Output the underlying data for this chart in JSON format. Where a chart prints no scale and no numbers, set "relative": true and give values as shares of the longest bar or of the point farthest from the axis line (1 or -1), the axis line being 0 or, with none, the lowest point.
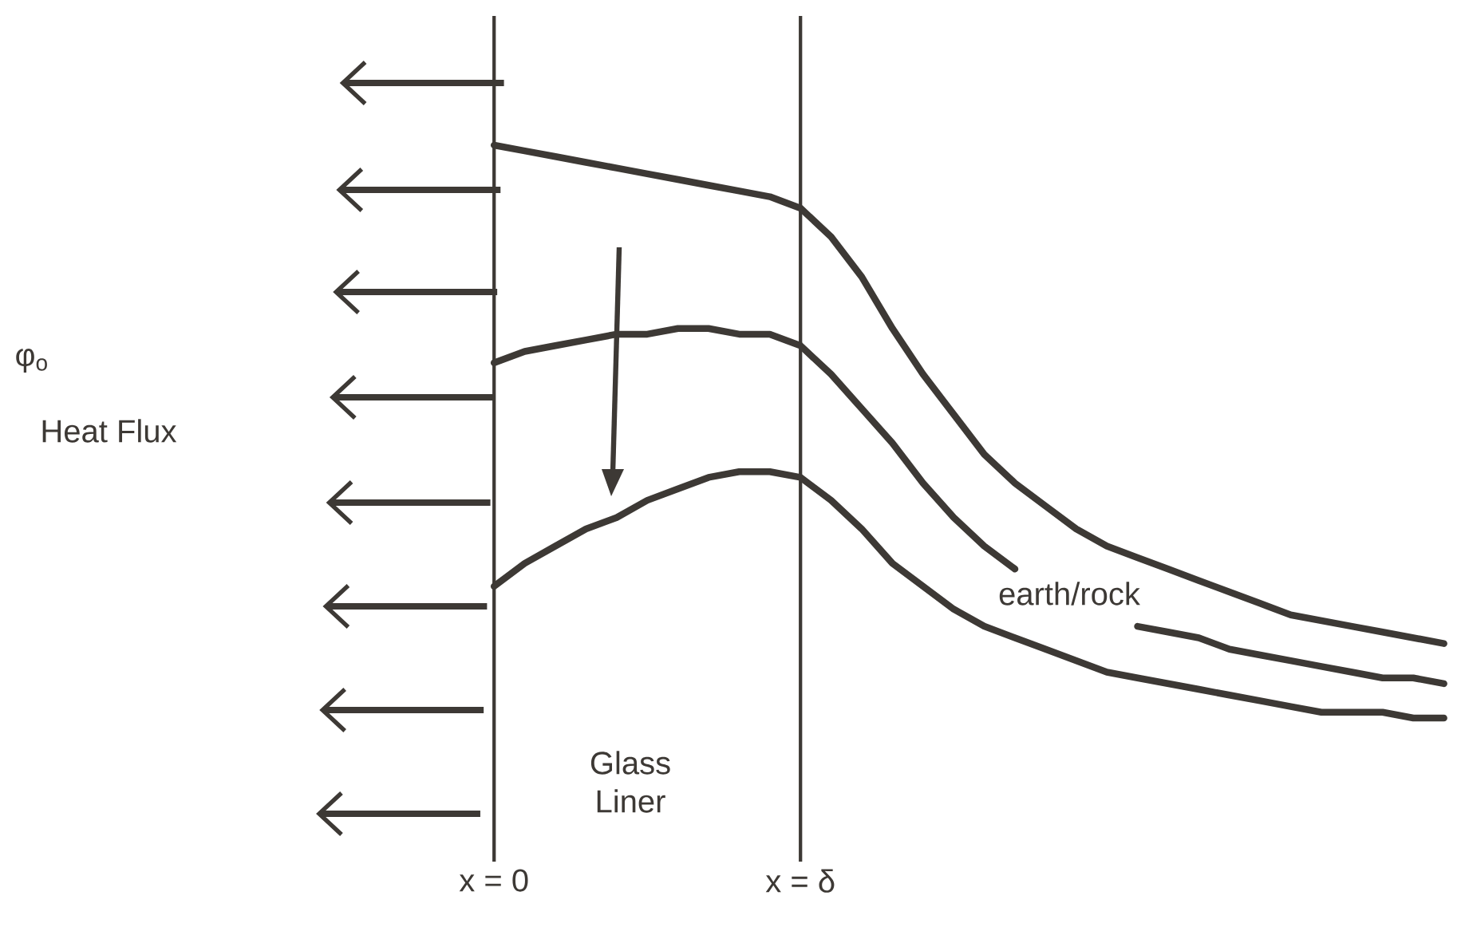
{
  "chart_data": {
    "type": "line",
    "relative": true,
    "categories": [
      "x = 0",
      null,
      null,
      null,
      null,
      null,
      null,
      null,
      null,
      null,
      "x = δ",
      null,
      null,
      null,
      null,
      null,
      null,
      null,
      null,
      null,
      null,
      null,
      null,
      null,
      null,
      null,
      null,
      null,
      null,
      null,
      null,
      null
    ],
    "tick_labels": "x",
    "grid": "x",
    "marker": "none",
    "line_style": "solid",
    "series": [
      {
        "color": "#3d3935",
        "values": [
          1.0,
          0.99,
          0.98,
          0.97,
          0.96,
          0.95,
          0.94,
          0.93,
          0.92,
          0.91,
          0.89,
          0.84,
          0.77,
          0.68,
          0.6,
          0.53,
          0.46,
          0.41,
          0.37,
          0.33,
          0.3,
          0.28,
          0.26,
          0.24,
          0.22,
          0.2,
          0.18,
          0.17,
          0.16,
          0.15,
          0.14,
          0.13
        ]
      },
      {
        "color": "#3d3935",
        "values": [
          0.62,
          0.64,
          0.65,
          0.66,
          0.67,
          0.67,
          0.68,
          0.68,
          0.67,
          0.67,
          0.65,
          0.6,
          0.54,
          0.48,
          0.41,
          0.35,
          0.3,
          0.26,
          null,
          null,
          null,
          0.16,
          0.15,
          0.14,
          0.12,
          0.11,
          0.1,
          0.09,
          0.08,
          0.07,
          0.07,
          0.06
        ]
      },
      {
        "color": "#3d3935",
        "values": [
          0.23,
          0.27,
          0.3,
          0.33,
          0.35,
          0.38,
          0.4,
          0.42,
          0.43,
          0.43,
          0.42,
          0.38,
          0.33,
          0.27,
          0.23,
          0.19,
          0.16,
          0.14,
          0.12,
          0.1,
          0.08,
          0.07,
          0.06,
          0.05,
          0.04,
          0.03,
          0.02,
          0.01,
          0.01,
          0.01,
          0,
          0
        ]
      }
    ],
    "annotations": [
      "φ$_{o}$",
      "Heat Flux",
      "Glass Liner",
      "earth/rock"
    ]
  }
}
